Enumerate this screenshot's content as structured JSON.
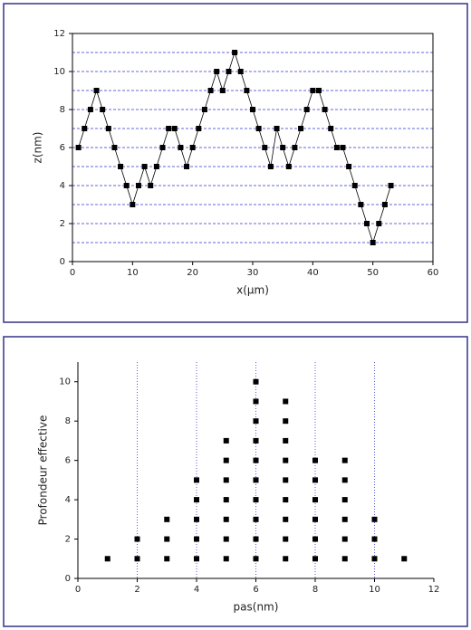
{
  "chart_data": [
    {
      "type": "line",
      "x_label": "x(µm)",
      "y_label": "z(nm)",
      "color": "#000000",
      "grid_color": "#3333cc",
      "frame": true,
      "x": [
        1,
        2,
        3,
        4,
        5,
        6,
        7,
        8,
        9,
        10,
        11,
        12,
        13,
        14,
        15,
        16,
        17,
        18,
        19,
        20,
        21,
        22,
        23,
        24,
        25,
        26,
        27,
        28,
        29,
        30,
        31,
        32,
        33,
        34,
        35,
        36,
        37,
        38,
        39,
        40,
        41,
        42,
        43,
        44,
        45,
        46,
        47,
        48,
        49,
        50,
        51,
        52,
        53
      ],
      "series": [
        {
          "values": [
            6,
            7,
            8,
            9,
            8,
            7,
            6,
            5,
            4,
            3,
            4,
            5,
            4,
            5,
            6,
            7,
            7,
            6,
            5,
            6,
            7,
            8,
            9,
            10,
            9,
            10,
            11,
            10,
            9,
            8,
            7,
            6,
            5,
            7,
            6,
            5,
            6,
            7,
            8,
            9,
            9,
            8,
            7,
            6,
            6,
            5,
            4,
            3,
            2,
            1,
            2,
            3,
            4
          ]
        }
      ],
      "xlim": [
        0,
        60
      ],
      "xticks": [
        0,
        10,
        20,
        30,
        40,
        50,
        60
      ],
      "ylim": [
        0,
        12
      ],
      "yticks": [
        0,
        2,
        4,
        6,
        8,
        10,
        12
      ],
      "grid_y": [
        1,
        2,
        3,
        4,
        5,
        6,
        7,
        8,
        9,
        10,
        11
      ]
    },
    {
      "type": "scatter",
      "x_label": "pas(nm)",
      "y_label": "Profondeur effective",
      "color": "#000000",
      "grid_color": "#3333cc",
      "frame": false,
      "x": [
        1,
        2,
        2,
        3,
        3,
        3,
        4,
        4,
        4,
        4,
        4,
        5,
        5,
        5,
        5,
        5,
        5,
        5,
        6,
        6,
        6,
        6,
        6,
        6,
        6,
        6,
        6,
        6,
        7,
        7,
        7,
        7,
        7,
        7,
        7,
        7,
        7,
        8,
        8,
        8,
        8,
        8,
        8,
        9,
        9,
        9,
        9,
        9,
        9,
        10,
        10,
        10,
        11
      ],
      "y": [
        1,
        1,
        2,
        1,
        2,
        3,
        1,
        2,
        3,
        4,
        5,
        1,
        2,
        3,
        4,
        5,
        6,
        7,
        1,
        2,
        3,
        4,
        5,
        6,
        7,
        8,
        9,
        10,
        1,
        2,
        3,
        4,
        5,
        6,
        7,
        8,
        9,
        1,
        2,
        3,
        4,
        5,
        6,
        1,
        2,
        3,
        4,
        5,
        6,
        1,
        2,
        3,
        1
      ],
      "xlim": [
        0,
        12
      ],
      "xticks": [
        0,
        2,
        4,
        6,
        8,
        10,
        12
      ],
      "ylim": [
        0,
        11
      ],
      "yticks": [
        0,
        2,
        4,
        6,
        8,
        10
      ],
      "grid_x": [
        2,
        4,
        6,
        8,
        10
      ]
    }
  ]
}
